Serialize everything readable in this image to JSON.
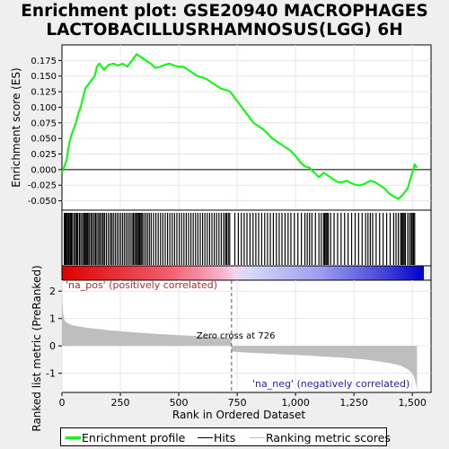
{
  "title_line1": "Enrichment plot: GSE20940 MACROPHAGES",
  "title_line2": "LACTOBACILLUSRHAMNOSUS(LGG) 6H",
  "colors": {
    "enrichment_line": "#00ff00",
    "hits": "#000000",
    "metric_fill": "#bebebe",
    "pos_text": "#cc2222",
    "neg_text": "#2222aa",
    "bar_red": "#dd0000",
    "bar_blue": "#0000cc"
  },
  "legend": {
    "enrichment_profile": "Enrichment profile",
    "hits": "Hits",
    "ranking_metric": "Ranking metric scores"
  },
  "chart_data": [
    {
      "type": "line",
      "name": "enrichment-score-panel",
      "ylabel": "Enrichment score (ES)",
      "xlim": [
        0,
        1580
      ],
      "ylim": [
        -0.065,
        0.2
      ],
      "yticks": [
        -0.05,
        -0.025,
        0.0,
        0.025,
        0.05,
        0.075,
        0.1,
        0.125,
        0.15,
        0.175
      ],
      "ytick_labels": [
        "-0.050",
        "-0.025",
        "0.000",
        "0.025",
        "0.050",
        "0.075",
        "0.100",
        "0.125",
        "0.150",
        "0.175"
      ],
      "grid": true,
      "series": [
        {
          "x": [
            0,
            10,
            20,
            30,
            40,
            50,
            60,
            70,
            80,
            90,
            100,
            110,
            120,
            130,
            140,
            150,
            160,
            170,
            180,
            200,
            220,
            240,
            260,
            280,
            300,
            320,
            340,
            360,
            380,
            400,
            420,
            440,
            460,
            480,
            500,
            520,
            540,
            560,
            580,
            600,
            620,
            640,
            660,
            680,
            700,
            720,
            740,
            760,
            780,
            800,
            820,
            840,
            860,
            880,
            900,
            920,
            940,
            960,
            980,
            1000,
            1020,
            1040,
            1060,
            1080,
            1100,
            1120,
            1140,
            1160,
            1180,
            1200,
            1220,
            1240,
            1260,
            1280,
            1300,
            1320,
            1340,
            1360,
            1380,
            1400,
            1420,
            1440,
            1460,
            1480,
            1500,
            1510,
            1520
          ],
          "y": [
            -0.005,
            0.005,
            0.015,
            0.04,
            0.055,
            0.065,
            0.075,
            0.09,
            0.1,
            0.115,
            0.13,
            0.135,
            0.14,
            0.145,
            0.15,
            0.165,
            0.17,
            0.165,
            0.16,
            0.168,
            0.17,
            0.167,
            0.17,
            0.165,
            0.175,
            0.185,
            0.18,
            0.175,
            0.17,
            0.163,
            0.165,
            0.168,
            0.17,
            0.167,
            0.165,
            0.165,
            0.16,
            0.155,
            0.15,
            0.148,
            0.145,
            0.14,
            0.135,
            0.13,
            0.128,
            0.125,
            0.115,
            0.105,
            0.095,
            0.085,
            0.075,
            0.07,
            0.065,
            0.058,
            0.05,
            0.045,
            0.04,
            0.035,
            0.03,
            0.022,
            0.012,
            0.005,
            0.003,
            -0.005,
            -0.012,
            -0.005,
            -0.01,
            -0.015,
            -0.02,
            -0.02,
            -0.018,
            -0.022,
            -0.025,
            -0.025,
            -0.022,
            -0.018,
            -0.02,
            -0.025,
            -0.03,
            -0.038,
            -0.043,
            -0.047,
            -0.04,
            -0.03,
            -0.005,
            0.008,
            0.003
          ]
        }
      ]
    },
    {
      "type": "bar",
      "name": "gene-hits-panel",
      "xlim": [
        0,
        1580
      ],
      "hit_positions": [
        10,
        14,
        18,
        22,
        27,
        31,
        36,
        40,
        45,
        52,
        58,
        63,
        68,
        75,
        81,
        88,
        94,
        99,
        103,
        108,
        112,
        118,
        125,
        131,
        138,
        144,
        150,
        157,
        163,
        170,
        176,
        182,
        190,
        198,
        206,
        213,
        220,
        228,
        236,
        244,
        252,
        260,
        268,
        276,
        284,
        292,
        300,
        306,
        312,
        318,
        323,
        328,
        333,
        338,
        343,
        350,
        358,
        366,
        374,
        382,
        392,
        402,
        412,
        422,
        432,
        442,
        452,
        462,
        472,
        482,
        492,
        502,
        512,
        522,
        532,
        542,
        552,
        562,
        572,
        582,
        592,
        602,
        612,
        622,
        632,
        642,
        652,
        662,
        672,
        682,
        692,
        700,
        705,
        712,
        718,
        740,
        755,
        768,
        780,
        792,
        805,
        818,
        830,
        842,
        855,
        868,
        880,
        892,
        905,
        918,
        930,
        942,
        955,
        968,
        980,
        995,
        1010,
        1025,
        1040,
        1050,
        1060,
        1070,
        1085,
        1100,
        1110,
        1120,
        1125,
        1130,
        1135,
        1140,
        1150,
        1165,
        1180,
        1195,
        1210,
        1225,
        1240,
        1255,
        1270,
        1285,
        1300,
        1310,
        1320,
        1330,
        1345,
        1360,
        1375,
        1390,
        1405,
        1420,
        1430,
        1440,
        1450,
        1455,
        1460,
        1465,
        1470,
        1480,
        1488,
        1495,
        1500,
        1505,
        1510
      ]
    },
    {
      "type": "area",
      "name": "ranked-metric-panel",
      "ylabel": "Ranked list metric (PreRanked)",
      "xlabel": "Rank in Ordered Dataset",
      "xlim": [
        0,
        1580
      ],
      "ylim": [
        -1.7,
        2.4
      ],
      "xticks": [
        0,
        250,
        500,
        750,
        1000,
        1250,
        1500
      ],
      "xtick_labels": [
        "0",
        "250",
        "500",
        "750",
        "1,000",
        "1,250",
        "1,500"
      ],
      "yticks": [
        -1,
        0,
        1,
        2
      ],
      "ytick_labels": [
        "-1",
        "0",
        "1",
        "2"
      ],
      "grid": true,
      "x": [
        0,
        2,
        5,
        10,
        20,
        40,
        70,
        100,
        150,
        200,
        300,
        400,
        500,
        600,
        700,
        725,
        726,
        730,
        800,
        900,
        1000,
        1100,
        1200,
        1300,
        1400,
        1450,
        1480,
        1500,
        1510,
        1515,
        1520
      ],
      "y": [
        2.3,
        1.6,
        1.2,
        0.95,
        0.85,
        0.77,
        0.71,
        0.67,
        0.62,
        0.57,
        0.5,
        0.44,
        0.39,
        0.35,
        0.3,
        0.28,
        -0.2,
        -0.21,
        -0.25,
        -0.29,
        -0.33,
        -0.38,
        -0.43,
        -0.5,
        -0.62,
        -0.72,
        -0.85,
        -1.0,
        -1.2,
        -1.4,
        -1.6
      ],
      "zero_cross_label": "Zero cross at 726",
      "zero_cross_rank": 726,
      "pos_label": "'na_pos' (positively correlated)",
      "neg_label": "'na_neg' (negatively correlated)"
    }
  ]
}
